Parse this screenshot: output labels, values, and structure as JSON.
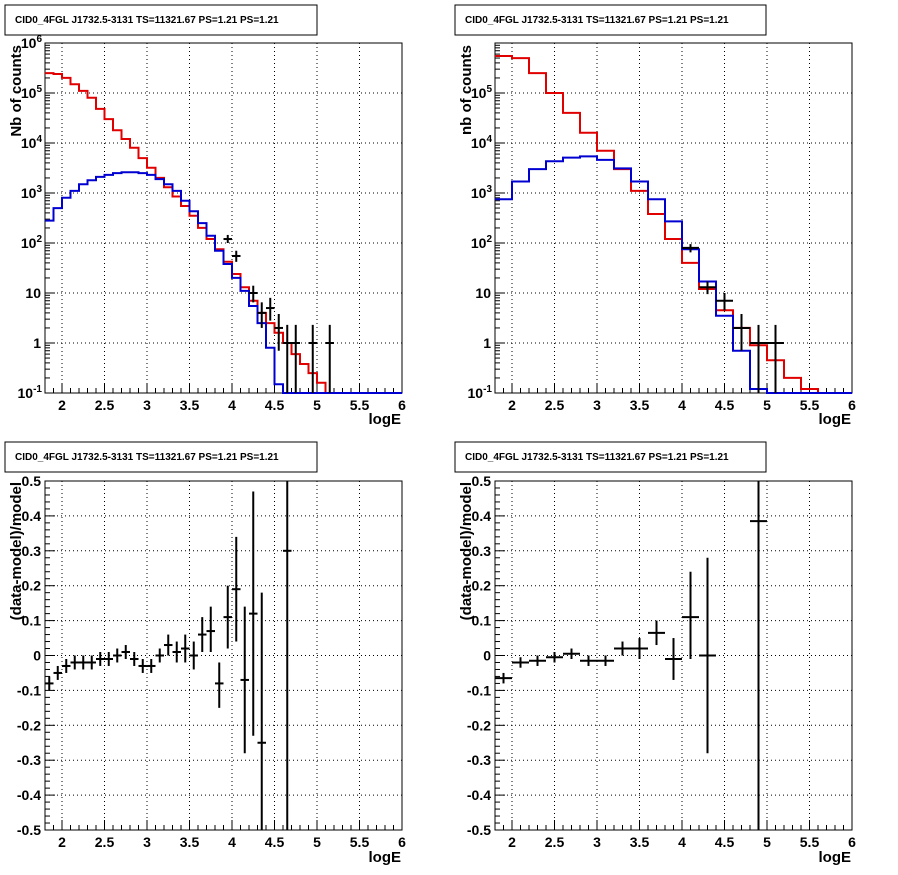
{
  "colors": {
    "data": "#000000",
    "total_model": "#e00000",
    "source_model": "#0000d0",
    "grid": "#000000"
  },
  "chart_data": [
    {
      "type": "histogram",
      "title": "CID0_4FGL J1732.5-3131 TS=11321.67 PS=1.21 PS=1.21",
      "xlabel": "logE",
      "ylabel": "Nb of counts",
      "xlim": [
        1.8,
        6.0
      ],
      "ylim": [
        0.1,
        1000000
      ],
      "yscale": "log",
      "grid": true,
      "xticklabels": [
        "2",
        "2.5",
        "3",
        "3.5",
        "4",
        "4.5",
        "5",
        "5.5",
        "6"
      ],
      "yticklabels": [
        "10^-1",
        "1",
        "10",
        "10^2",
        "10^3",
        "10^4",
        "10^5",
        "10^6"
      ],
      "bin_edges": [
        1.8,
        1.9,
        2.0,
        2.1,
        2.2,
        2.3,
        2.4,
        2.5,
        2.6,
        2.7,
        2.8,
        2.9,
        3.0,
        3.1,
        3.2,
        3.3,
        3.4,
        3.5,
        3.6,
        3.7,
        3.8,
        3.9,
        4.0,
        4.1,
        4.2,
        4.3,
        4.4,
        4.5,
        4.6,
        4.7,
        4.8,
        4.9,
        5.0,
        5.1,
        5.2,
        5.3,
        5.4,
        5.5,
        5.6,
        5.7,
        5.8,
        5.9,
        6.0
      ],
      "series": [
        {
          "name": "",
          "role": "total_model",
          "values": [
            250000,
            240000,
            200000,
            150000,
            110000,
            80000,
            48000,
            30000,
            18000,
            12000,
            8000,
            5000,
            3200,
            2000,
            1300,
            850,
            550,
            350,
            200,
            120,
            75,
            42,
            24,
            13,
            7,
            4,
            2.5,
            1.6,
            1.0,
            0.6,
            0.38,
            0.25,
            0.16,
            0.1,
            0.1,
            0.1,
            0.1,
            0.1,
            0.1,
            0.1,
            0.1,
            0.1
          ]
        },
        {
          "name": "",
          "role": "source_model",
          "values": [
            280,
            500,
            800,
            1100,
            1500,
            1800,
            2100,
            2300,
            2500,
            2600,
            2600,
            2500,
            2300,
            1900,
            1500,
            1100,
            700,
            430,
            250,
            140,
            70,
            38,
            20,
            11,
            5.5,
            2.5,
            0.8,
            0.15,
            0.1,
            0.1,
            0.1,
            0.1,
            0.1,
            0.1,
            0.1,
            0.1,
            0.1,
            0.1,
            0.1,
            0.1,
            0.1,
            0.1
          ]
        }
      ],
      "points": [
        {
          "x": 3.95,
          "y": 120,
          "ylo": 100,
          "yhi": 145
        },
        {
          "x": 4.05,
          "y": 55,
          "ylo": 42,
          "yhi": 70
        },
        {
          "x": 4.25,
          "y": 10,
          "ylo": 6.5,
          "yhi": 14
        },
        {
          "x": 4.35,
          "y": 4,
          "ylo": 2,
          "yhi": 6.5
        },
        {
          "x": 4.45,
          "y": 5,
          "ylo": 2.8,
          "yhi": 8
        },
        {
          "x": 4.55,
          "y": 2,
          "ylo": 0.7,
          "yhi": 3.8
        },
        {
          "x": 4.65,
          "y": 1,
          "ylo": 0.1,
          "yhi": 2.3
        },
        {
          "x": 4.75,
          "y": 1,
          "ylo": 0.1,
          "yhi": 2.3
        },
        {
          "x": 4.95,
          "y": 1,
          "ylo": 0.1,
          "yhi": 2.3
        },
        {
          "x": 5.15,
          "y": 1,
          "ylo": 0.1,
          "yhi": 2.3
        }
      ]
    },
    {
      "type": "histogram",
      "title": "CID0_4FGL J1732.5-3131 TS=11321.67 PS=1.21 PS=1.21",
      "xlabel": "logE",
      "ylabel": "nb of counts",
      "xlim": [
        1.8,
        6.0
      ],
      "ylim": [
        0.1,
        1000000
      ],
      "yscale": "log",
      "grid": true,
      "xticklabels": [
        "2",
        "2.5",
        "3",
        "3.5",
        "4",
        "4.5",
        "5",
        "5.5",
        "6"
      ],
      "yticklabels": [
        "10^-1",
        "1",
        "10",
        "10^2",
        "10^3",
        "10^4",
        "10^5"
      ],
      "bin_edges": [
        1.8,
        2.0,
        2.2,
        2.4,
        2.6,
        2.8,
        3.0,
        3.2,
        3.4,
        3.6,
        3.8,
        4.0,
        4.2,
        4.4,
        4.6,
        4.8,
        5.0,
        5.2,
        5.4,
        5.6,
        5.8,
        6.0
      ],
      "series": [
        {
          "name": "",
          "role": "total_model",
          "values": [
            550000,
            500000,
            250000,
            100000,
            40000,
            16000,
            7000,
            3000,
            1100,
            380,
            120,
            40,
            12,
            4.5,
            2.0,
            0.9,
            0.45,
            0.2,
            0.12,
            0.1,
            0.1
          ]
        },
        {
          "name": "",
          "role": "source_model",
          "values": [
            750,
            1700,
            3000,
            4300,
            5100,
            5400,
            4600,
            3100,
            1700,
            750,
            270,
            75,
            17,
            3.5,
            0.7,
            0.12,
            0.1,
            0.1,
            0.1,
            0.1,
            0.1
          ]
        }
      ],
      "points": [
        {
          "x": 4.1,
          "y": 80,
          "ylo": 65,
          "yhi": 95
        },
        {
          "x": 4.3,
          "y": 13,
          "ylo": 9.5,
          "yhi": 17
        },
        {
          "x": 4.5,
          "y": 7,
          "ylo": 4.5,
          "yhi": 10
        },
        {
          "x": 4.7,
          "y": 2,
          "ylo": 0.7,
          "yhi": 3.8
        },
        {
          "x": 4.9,
          "y": 1,
          "ylo": 0.1,
          "yhi": 2.3
        },
        {
          "x": 5.1,
          "y": 1,
          "ylo": 0.1,
          "yhi": 2.3
        }
      ]
    },
    {
      "type": "scatter",
      "title": "CID0_4FGL J1732.5-3131 TS=11321.67 PS=1.21 PS=1.21",
      "xlabel": "logE",
      "ylabel": "(data-model)/model",
      "xlim": [
        1.8,
        6.0
      ],
      "ylim": [
        -0.5,
        0.5
      ],
      "grid": true,
      "xticklabels": [
        "2",
        "2.5",
        "3",
        "3.5",
        "4",
        "4.5",
        "5",
        "5.5",
        "6"
      ],
      "yticklabels": [
        "-0.5",
        "-0.4",
        "-0.3",
        "-0.2",
        "-0.1",
        "0",
        "0.1",
        "0.2",
        "0.3",
        "0.4",
        "0.5"
      ],
      "points": [
        {
          "x": 1.85,
          "y": -0.08,
          "ylo": -0.1,
          "yhi": -0.06,
          "xerr": 0.05
        },
        {
          "x": 1.95,
          "y": -0.05,
          "ylo": -0.07,
          "yhi": -0.03,
          "xerr": 0.05
        },
        {
          "x": 2.05,
          "y": -0.03,
          "ylo": -0.05,
          "yhi": -0.01,
          "xerr": 0.05
        },
        {
          "x": 2.15,
          "y": -0.02,
          "ylo": -0.04,
          "yhi": 0.0,
          "xerr": 0.05
        },
        {
          "x": 2.25,
          "y": -0.02,
          "ylo": -0.04,
          "yhi": 0.0,
          "xerr": 0.05
        },
        {
          "x": 2.35,
          "y": -0.02,
          "ylo": -0.04,
          "yhi": 0.0,
          "xerr": 0.05
        },
        {
          "x": 2.45,
          "y": -0.01,
          "ylo": -0.03,
          "yhi": 0.01,
          "xerr": 0.05
        },
        {
          "x": 2.55,
          "y": -0.01,
          "ylo": -0.03,
          "yhi": 0.01,
          "xerr": 0.05
        },
        {
          "x": 2.65,
          "y": 0.0,
          "ylo": -0.02,
          "yhi": 0.02,
          "xerr": 0.05
        },
        {
          "x": 2.75,
          "y": 0.01,
          "ylo": -0.01,
          "yhi": 0.03,
          "xerr": 0.05
        },
        {
          "x": 2.85,
          "y": -0.01,
          "ylo": -0.03,
          "yhi": 0.01,
          "xerr": 0.05
        },
        {
          "x": 2.95,
          "y": -0.03,
          "ylo": -0.05,
          "yhi": -0.01,
          "xerr": 0.05
        },
        {
          "x": 3.05,
          "y": -0.03,
          "ylo": -0.05,
          "yhi": -0.01,
          "xerr": 0.05
        },
        {
          "x": 3.15,
          "y": 0.0,
          "ylo": -0.02,
          "yhi": 0.02,
          "xerr": 0.05
        },
        {
          "x": 3.25,
          "y": 0.03,
          "ylo": 0.0,
          "yhi": 0.06,
          "xerr": 0.05
        },
        {
          "x": 3.35,
          "y": 0.01,
          "ylo": -0.02,
          "yhi": 0.04,
          "xerr": 0.05
        },
        {
          "x": 3.45,
          "y": 0.02,
          "ylo": -0.02,
          "yhi": 0.06,
          "xerr": 0.05
        },
        {
          "x": 3.55,
          "y": 0.0,
          "ylo": -0.04,
          "yhi": 0.04,
          "xerr": 0.05
        },
        {
          "x": 3.65,
          "y": 0.06,
          "ylo": 0.01,
          "yhi": 0.11,
          "xerr": 0.05
        },
        {
          "x": 3.75,
          "y": 0.07,
          "ylo": 0.01,
          "yhi": 0.14,
          "xerr": 0.05
        },
        {
          "x": 3.85,
          "y": -0.08,
          "ylo": -0.15,
          "yhi": -0.02,
          "xerr": 0.05
        },
        {
          "x": 3.95,
          "y": 0.11,
          "ylo": 0.02,
          "yhi": 0.2,
          "xerr": 0.05
        },
        {
          "x": 4.05,
          "y": 0.19,
          "ylo": 0.04,
          "yhi": 0.34,
          "xerr": 0.05
        },
        {
          "x": 4.15,
          "y": -0.07,
          "ylo": -0.28,
          "yhi": 0.14,
          "xerr": 0.05
        },
        {
          "x": 4.25,
          "y": 0.12,
          "ylo": -0.23,
          "yhi": 0.47,
          "xerr": 0.05
        },
        {
          "x": 4.35,
          "y": -0.25,
          "ylo": -0.5,
          "yhi": 0.18,
          "xerr": 0.05
        },
        {
          "x": 4.65,
          "y": 0.3,
          "ylo": -0.5,
          "yhi": 0.5,
          "xerr": 0.05
        }
      ]
    },
    {
      "type": "scatter",
      "title": "CID0_4FGL J1732.5-3131 TS=11321.67 PS=1.21 PS=1.21",
      "xlabel": "logE",
      "ylabel": "(data-model)/model",
      "xlim": [
        1.8,
        6.0
      ],
      "ylim": [
        -0.5,
        0.5
      ],
      "grid": true,
      "xticklabels": [
        "2",
        "2.5",
        "3",
        "3.5",
        "4",
        "4.5",
        "5",
        "5.5",
        "6"
      ],
      "yticklabels": [
        "-0.5",
        "-0.4",
        "-0.3",
        "-0.2",
        "-0.1",
        "0",
        "0.1",
        "0.2",
        "0.3",
        "0.4",
        "0.5"
      ],
      "points": [
        {
          "x": 1.9,
          "y": -0.065,
          "ylo": -0.08,
          "yhi": -0.05,
          "xerr": 0.1
        },
        {
          "x": 2.1,
          "y": -0.02,
          "ylo": -0.035,
          "yhi": -0.005,
          "xerr": 0.1
        },
        {
          "x": 2.3,
          "y": -0.015,
          "ylo": -0.03,
          "yhi": 0.0,
          "xerr": 0.1
        },
        {
          "x": 2.5,
          "y": -0.005,
          "ylo": -0.02,
          "yhi": 0.01,
          "xerr": 0.1
        },
        {
          "x": 2.7,
          "y": 0.005,
          "ylo": -0.01,
          "yhi": 0.02,
          "xerr": 0.1
        },
        {
          "x": 2.9,
          "y": -0.015,
          "ylo": -0.03,
          "yhi": 0.0,
          "xerr": 0.1
        },
        {
          "x": 3.1,
          "y": -0.015,
          "ylo": -0.03,
          "yhi": 0.0,
          "xerr": 0.1
        },
        {
          "x": 3.3,
          "y": 0.02,
          "ylo": 0.0,
          "yhi": 0.04,
          "xerr": 0.1
        },
        {
          "x": 3.5,
          "y": 0.02,
          "ylo": -0.01,
          "yhi": 0.05,
          "xerr": 0.1
        },
        {
          "x": 3.7,
          "y": 0.065,
          "ylo": 0.03,
          "yhi": 0.1,
          "xerr": 0.1
        },
        {
          "x": 3.9,
          "y": -0.01,
          "ylo": -0.07,
          "yhi": 0.05,
          "xerr": 0.1
        },
        {
          "x": 4.1,
          "y": 0.11,
          "ylo": -0.01,
          "yhi": 0.24,
          "xerr": 0.1
        },
        {
          "x": 4.3,
          "y": 0.0,
          "ylo": -0.28,
          "yhi": 0.28,
          "xerr": 0.1
        },
        {
          "x": 4.9,
          "y": 0.385,
          "ylo": -0.5,
          "yhi": 0.5,
          "xerr": 0.1
        }
      ]
    }
  ]
}
